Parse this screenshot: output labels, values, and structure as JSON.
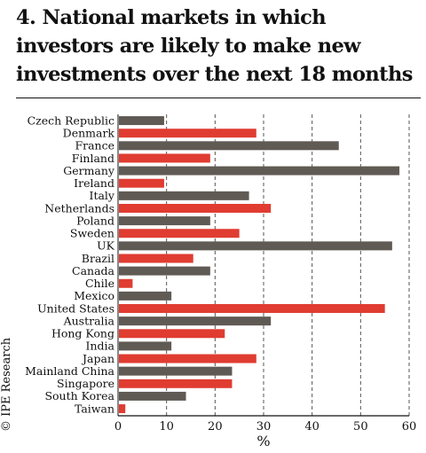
{
  "title": "4. National markets in which investors are likely to make new investments over the next 18 months",
  "credit": "© IPE Research",
  "chart_data": {
    "type": "bar",
    "orientation": "horizontal",
    "categories": [
      "Czech Republic",
      "Denmark",
      "France",
      "Finland",
      "Germany",
      "Ireland",
      "Italy",
      "Netherlands",
      "Poland",
      "Sweden",
      "UK",
      "Brazil",
      "Canada",
      "Chile",
      "Mexico",
      "United States",
      "Australia",
      "Hong Kong",
      "India",
      "Japan",
      "Mainland China",
      "Singapore",
      "South Korea",
      "Taiwan"
    ],
    "values": [
      9.5,
      28.5,
      45.5,
      19,
      58,
      9.5,
      27,
      31.5,
      19,
      25,
      56.5,
      15.5,
      19,
      3,
      11,
      55,
      31.5,
      22,
      11,
      28.5,
      23.5,
      23.5,
      14,
      1.5
    ],
    "bar_colors": [
      "#605a55",
      "#e03c31",
      "#605a55",
      "#e03c31",
      "#605a55",
      "#e03c31",
      "#605a55",
      "#e03c31",
      "#605a55",
      "#e03c31",
      "#605a55",
      "#e03c31",
      "#605a55",
      "#e03c31",
      "#605a55",
      "#e03c31",
      "#605a55",
      "#e03c31",
      "#605a55",
      "#e03c31",
      "#605a55",
      "#e03c31",
      "#605a55",
      "#e03c31"
    ],
    "xlabel": "%",
    "xlim": [
      0,
      60
    ],
    "xticks": [
      "0",
      "10",
      "20",
      "30",
      "40",
      "50",
      "60"
    ],
    "grid": "vertical dashed"
  }
}
